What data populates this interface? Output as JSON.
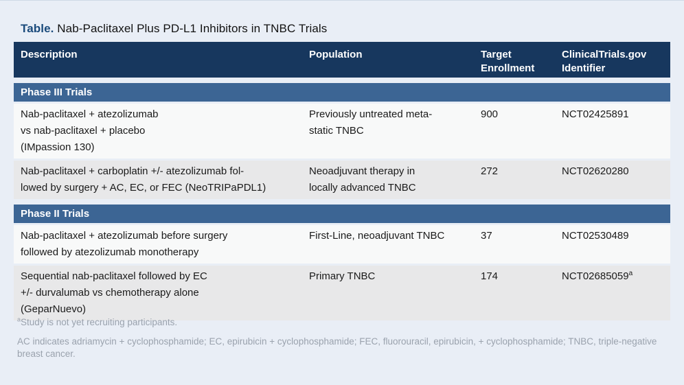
{
  "page": {
    "title_prefix": "Table.",
    "title_text": " Nab-Paclitaxel Plus PD-L1 Inhibitors in TNBC Trials"
  },
  "table": {
    "columns": [
      "Description",
      "Population",
      "Target Enrollment",
      "ClinicalTrials.gov Identifier"
    ],
    "sections": [
      {
        "label": "Phase III Trials",
        "rows": [
          {
            "description": "Nab-paclitaxel + atezolizumab\nvs nab-paclitaxel + placebo\n(IMpassion 130)",
            "population": "Previously untreated meta-\nstatic TNBC",
            "target_enrollment": "900",
            "identifier": "NCT02425891",
            "identifier_sup": ""
          },
          {
            "description": "Nab-paclitaxel + carboplatin +/- atezolizumab fol-\nlowed by surgery + AC, EC, or FEC (NeoTRIPaPDL1)",
            "population": "Neoadjuvant therapy in\nlocally advanced TNBC",
            "target_enrollment": "272",
            "identifier": "NCT02620280",
            "identifier_sup": ""
          }
        ]
      },
      {
        "label": "Phase II Trials",
        "rows": [
          {
            "description": "Nab-paclitaxel + atezolizumab before surgery\nfollowed by atezolizumab monotherapy",
            "population": "First-Line, neoadjuvant TNBC",
            "target_enrollment": "37",
            "identifier": "NCT02530489",
            "identifier_sup": ""
          },
          {
            "description": "Sequential nab-paclitaxel followed by EC\n+/- durvalumab vs chemotherapy alone\n(GeparNuevo)",
            "population": "Primary TNBC",
            "target_enrollment": "174",
            "identifier": "NCT02685059",
            "identifier_sup": "a"
          }
        ]
      }
    ]
  },
  "footnotes": {
    "note1_sup": "a",
    "note1_text": "Study is not yet recruiting participants.",
    "note2_text": "AC indicates adriamycin + cyclophosphamide; EC, epirubicin + cyclophosphamide; FEC, fluorouracil, epirubicin, + cyclophosphamide; TNBC, triple-negative breast cancer."
  },
  "colors": {
    "page_bg": "#e9eef6",
    "header_navy": "#17375e",
    "section_blue": "#3c6594",
    "row_light": "#f8f9f9",
    "row_gray": "#e8e8e9",
    "title_navy": "#1a4a7b",
    "footnote_gray": "#9aa2ad"
  }
}
